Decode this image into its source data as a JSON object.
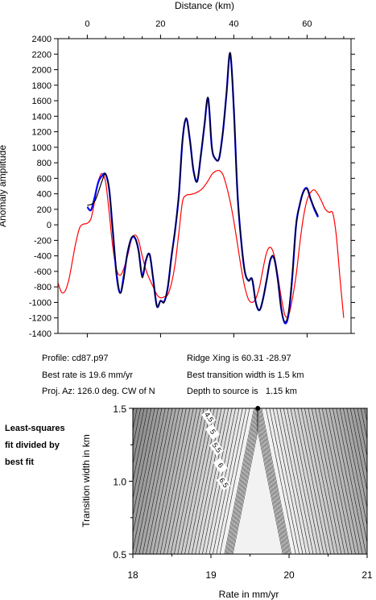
{
  "colors": {
    "observed": "#000000",
    "model": "#ff0000",
    "fit": "#0000ff",
    "background": "#ffffff"
  },
  "info": {
    "profile": "Profile: cd87.p97",
    "ridge_xing": "Ridge Xing is 60.31 -28.97",
    "best_rate": "Best rate is 19.6 mm/yr",
    "best_width": "Best transition width is 1.5 km",
    "proj_az": "Proj. Az: 126.0 deg. CW of N",
    "depth": "Depth to source is   1.15 km"
  },
  "side_note": [
    "Least-squares",
    "fit divided by",
    "best fit"
  ],
  "chart_data": [
    {
      "type": "line",
      "title": "",
      "xlabel": "Distance (km)",
      "ylabel": "Anomaly amplitude",
      "xlim": [
        -8,
        72
      ],
      "ylim": [
        -1400,
        2400
      ],
      "x_ticks": [
        "0",
        "20",
        "40",
        "60"
      ],
      "y_ticks": [
        "-1400",
        "-1200",
        "-1000",
        "-800",
        "-600",
        "-400",
        "-200",
        "0",
        "200",
        "400",
        "600",
        "800",
        "1000",
        "1200",
        "1400",
        "1600",
        "1800",
        "2000",
        "2200",
        "2400"
      ],
      "series": [
        {
          "key": "observed",
          "x": [
            0,
            2,
            4,
            5,
            6,
            7,
            8,
            9,
            10,
            11,
            12,
            13,
            14,
            15,
            16,
            17,
            18,
            19,
            20,
            21,
            22,
            23,
            24,
            25,
            26,
            27,
            28,
            29,
            30,
            31,
            32,
            33,
            34,
            35,
            36,
            37,
            38,
            39,
            40,
            41,
            42,
            43,
            44,
            45,
            46,
            47,
            48,
            49,
            50,
            51,
            52,
            53,
            54,
            55,
            56,
            57,
            58,
            59,
            60,
            61,
            62,
            63
          ],
          "y": [
            250,
            300,
            560,
            660,
            450,
            -100,
            -600,
            -880,
            -700,
            -350,
            -170,
            -160,
            -350,
            -680,
            -450,
            -380,
            -700,
            -1050,
            -980,
            -1000,
            -800,
            -400,
            -50,
            400,
            1100,
            1380,
            1100,
            700,
            560,
            900,
            1300,
            1640,
            1000,
            850,
            860,
            1200,
            1700,
            2220,
            1500,
            400,
            -200,
            -600,
            -720,
            -700,
            -1000,
            -1100,
            -950,
            -700,
            -440,
            -420,
            -700,
            -1100,
            -1250,
            -1100,
            -600,
            0,
            250,
            420,
            460,
            330,
            220,
            120
          ]
        },
        {
          "key": "model",
          "x": [
            -8,
            -7,
            -6,
            -5,
            -4,
            -3,
            -2,
            -1,
            0,
            1,
            2,
            3,
            4,
            5,
            6,
            7,
            8,
            9,
            10,
            11,
            12,
            13,
            14,
            15,
            16,
            17,
            18,
            19,
            20,
            21,
            22,
            23,
            24,
            25,
            26,
            27,
            28,
            29,
            30,
            31,
            32,
            33,
            34,
            35,
            36,
            37,
            38,
            39,
            40,
            41,
            42,
            43,
            44,
            45,
            46,
            47,
            48,
            49,
            50,
            51,
            52,
            53,
            54,
            55,
            56,
            57,
            58,
            59,
            60,
            61,
            62,
            63,
            64,
            65,
            66,
            67,
            68,
            69,
            70
          ],
          "y": [
            -750,
            -870,
            -850,
            -700,
            -450,
            -200,
            -30,
            10,
            20,
            80,
            300,
            560,
            660,
            550,
            150,
            -300,
            -580,
            -650,
            -560,
            -400,
            -200,
            -130,
            -200,
            -400,
            -580,
            -700,
            -800,
            -900,
            -940,
            -930,
            -900,
            -750,
            -500,
            -100,
            300,
            380,
            390,
            400,
            420,
            450,
            500,
            570,
            650,
            690,
            700,
            650,
            500,
            300,
            50,
            -250,
            -550,
            -800,
            -960,
            -1000,
            -950,
            -800,
            -560,
            -350,
            -290,
            -390,
            -650,
            -950,
            -1170,
            -1160,
            -950,
            -650,
            -250,
            100,
            320,
            420,
            450,
            390,
            300,
            200,
            160,
            150,
            -150,
            -700,
            -1200
          ]
        },
        {
          "key": "fit",
          "x": [
            0,
            1,
            2,
            3,
            4,
            5,
            6,
            7,
            8,
            9,
            10,
            11,
            12,
            13,
            14,
            15,
            16,
            17,
            18,
            19,
            20,
            21,
            22,
            23,
            24,
            25,
            26,
            27,
            28,
            29,
            30,
            31,
            32,
            33,
            34,
            35,
            36,
            37,
            38,
            39,
            40,
            41,
            42,
            43,
            44,
            45,
            46,
            47,
            48,
            49,
            50,
            51,
            52,
            53,
            54,
            55,
            56,
            57,
            58,
            59,
            60,
            61,
            62,
            63
          ],
          "y": [
            230,
            190,
            350,
            550,
            630,
            650,
            450,
            -100,
            -650,
            -880,
            -650,
            -360,
            -180,
            -170,
            -330,
            -660,
            -460,
            -380,
            -700,
            -1050,
            -980,
            -990,
            -800,
            -400,
            -60,
            390,
            1090,
            1370,
            1100,
            700,
            560,
            890,
            1290,
            1630,
            1000,
            850,
            860,
            1190,
            1690,
            2210,
            1500,
            400,
            -200,
            -600,
            -720,
            -700,
            -1000,
            -1100,
            -950,
            -700,
            -450,
            -430,
            -700,
            -1100,
            -1270,
            -1140,
            -650,
            0,
            260,
            430,
            470,
            330,
            200,
            100
          ]
        }
      ]
    },
    {
      "type": "heatmap",
      "title": "",
      "xlabel": "Rate in mm/yr",
      "ylabel": "Transition width in km",
      "xlim": [
        18,
        21
      ],
      "ylim": [
        0.5,
        1.5
      ],
      "x_ticks": [
        "18",
        "19",
        "20",
        "21"
      ],
      "y_ticks": [
        "0.5",
        "1.0",
        "1.5"
      ],
      "best_fit": {
        "rate": 19.6,
        "width": 1.5
      },
      "contour_labels": [
        "4.5",
        "5",
        "5.5",
        "6",
        "6.5"
      ]
    }
  ]
}
